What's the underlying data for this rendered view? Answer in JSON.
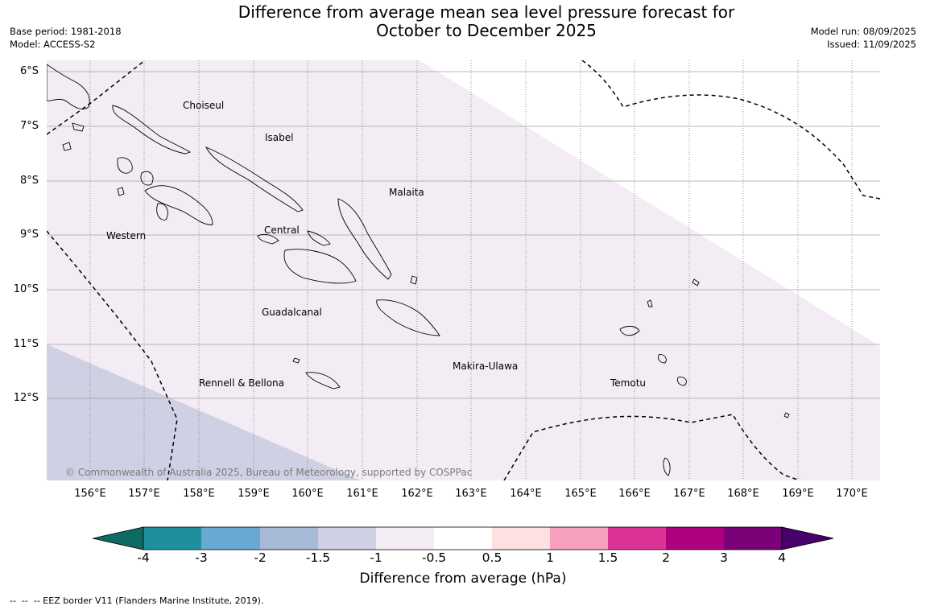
{
  "title_line1": "Difference from average mean sea level pressure forecast for",
  "title_line2": "October to December 2025",
  "meta_left": {
    "base_period": "Base period: 1981-2018",
    "model": "Model: ACCESS-S2"
  },
  "meta_right": {
    "model_run": "Model run: 08/09/2025",
    "issued": "Issued: 11/09/2025"
  },
  "map": {
    "lat_labels": [
      "6°S",
      "7°S",
      "8°S",
      "9°S",
      "10°S",
      "11°S",
      "12°S"
    ],
    "lon_labels": [
      "156°E",
      "157°E",
      "158°E",
      "159°E",
      "160°E",
      "161°E",
      "162°E",
      "163°E",
      "164°E",
      "165°E",
      "166°E",
      "167°E",
      "168°E",
      "169°E",
      "170°E"
    ],
    "places": [
      {
        "name": "Choiseul"
      },
      {
        "name": "Isabel"
      },
      {
        "name": "Malaita"
      },
      {
        "name": "Central"
      },
      {
        "name": "Western"
      },
      {
        "name": "Guadalcanal"
      },
      {
        "name": "Makira-Ulawa"
      },
      {
        "name": "Rennell & Bellona"
      },
      {
        "name": "Temotu"
      }
    ],
    "copyright": "© Commonwealth of Australia 2025, Bureau of Meteorology, supported by COSPPac",
    "region_colors": {
      "minus1_to_minus0_5": "#f4ecf4",
      "minus1_5_to_minus1": "#cfd0e4",
      "neutral": "#ffffff"
    }
  },
  "colorbar": {
    "ticks": [
      "-4",
      "-3",
      "-2",
      "-1.5",
      "-1",
      "-0.5",
      "0.5",
      "1",
      "1.5",
      "2",
      "3",
      "4"
    ],
    "colors": [
      "#0e6b63",
      "#1e8f9c",
      "#67a9d2",
      "#a6b9d6",
      "#cfd0e4",
      "#f4ecf4",
      "#ffffff",
      "#fde0e0",
      "#f7a0bd",
      "#dc3496",
      "#ad017e",
      "#7a0177",
      "#4a006a"
    ],
    "label": "Difference from average (hPa)"
  },
  "footnote": "--  --  -- EEZ border V11 (Flanders Marine Institute, 2019)."
}
